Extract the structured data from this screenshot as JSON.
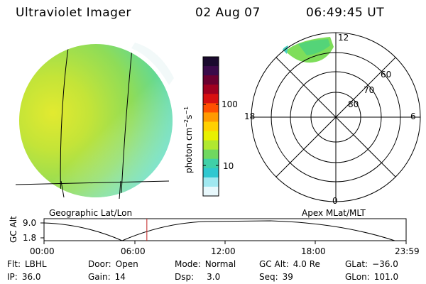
{
  "header": {
    "instrument": "Ultraviolet Imager",
    "date": "02 Aug 07",
    "time": "06:49:45 UT"
  },
  "colorbar": {
    "unit_label": "photon cm",
    "unit_sup1": "−2",
    "unit_mid": "s",
    "unit_sup2": "−1",
    "ticks": [
      "100",
      "10"
    ],
    "colors": [
      "#1a0a2e",
      "#3a0a4a",
      "#6a0030",
      "#a00020",
      "#d81010",
      "#ff5000",
      "#ff9a00",
      "#ffd000",
      "#e8f000",
      "#b0e830",
      "#70d860",
      "#40d0a8",
      "#30c8d0",
      "#a0e8f0",
      "#e8f8fc"
    ]
  },
  "polar": {
    "lat_labels": [
      "60",
      "70",
      "80"
    ],
    "mlt_labels": {
      "top": "12",
      "left": "18",
      "right": "6",
      "bottom": "0"
    }
  },
  "captions": {
    "left": "Geographic Lat/Lon",
    "right": "Apex MLat/MLT"
  },
  "timeline": {
    "y_title": "GC Alt",
    "y_ticks": [
      "9.0",
      "1.8"
    ],
    "x_ticks": [
      "00:00",
      "06:00",
      "12:00",
      "18:00",
      "23:59"
    ],
    "current_time_fraction": 0.284
  },
  "info": {
    "row1": [
      {
        "key": "Flt:",
        "value": "LBHL"
      },
      {
        "key": "Door:",
        "value": "Open"
      },
      {
        "key": "Mode:",
        "value": "Normal"
      },
      {
        "key": "GC Alt:",
        "value": "4.0 Re"
      },
      {
        "key": "GLat:",
        "value": "−36.0"
      }
    ],
    "row2": [
      {
        "key": "IP:",
        "value": "36.0"
      },
      {
        "key": "Gain:",
        "value": "14"
      },
      {
        "key": "Dsp:",
        "value": "3.0"
      },
      {
        "key": "Seq:",
        "value": "39"
      },
      {
        "key": "GLon:",
        "value": "101.0"
      }
    ]
  }
}
